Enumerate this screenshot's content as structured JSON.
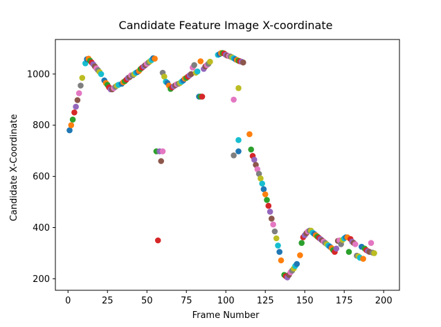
{
  "chart_data": {
    "type": "scatter",
    "title": "Candidate Feature Image X-coordinate",
    "xlabel": "Frame Number",
    "ylabel": "Candidate X-Coordinate",
    "xlim": [
      -8,
      210
    ],
    "ylim": [
      155,
      1135
    ],
    "grid": false,
    "legend": "none",
    "x_ticks": [
      0,
      25,
      50,
      75,
      100,
      125,
      150,
      175,
      200
    ],
    "x_tick_labels": [
      "0",
      "25",
      "50",
      "75",
      "100",
      "125",
      "150",
      "175",
      "200"
    ],
    "y_ticks": [
      200,
      400,
      600,
      800,
      1000
    ],
    "y_tick_labels": [
      "200",
      "400",
      "600",
      "800",
      "1000"
    ],
    "palette": [
      "#1f77b4",
      "#ff7f0e",
      "#2ca02c",
      "#d62728",
      "#9467bd",
      "#8c564b",
      "#e377c2",
      "#7f7f7f",
      "#bcbd22",
      "#17becf"
    ],
    "points": [
      [
        1,
        780
      ],
      [
        2,
        800
      ],
      [
        3,
        822
      ],
      [
        4,
        850
      ],
      [
        5,
        872
      ],
      [
        6,
        898
      ],
      [
        7,
        925
      ],
      [
        8,
        955
      ],
      [
        9,
        985
      ],
      [
        11,
        1042
      ],
      [
        12,
        1058
      ],
      [
        13,
        1060
      ],
      [
        14,
        1052
      ],
      [
        15,
        1045
      ],
      [
        16,
        1038
      ],
      [
        17,
        1030
      ],
      [
        18,
        1022
      ],
      [
        19,
        1015
      ],
      [
        20,
        1008
      ],
      [
        21,
        1000
      ],
      [
        23,
        975
      ],
      [
        24,
        965
      ],
      [
        25,
        958
      ],
      [
        26,
        948
      ],
      [
        27,
        940
      ],
      [
        28,
        940
      ],
      [
        29,
        945
      ],
      [
        30,
        950
      ],
      [
        31,
        955
      ],
      [
        32,
        958
      ],
      [
        34,
        962
      ],
      [
        35,
        968
      ],
      [
        36,
        972
      ],
      [
        37,
        978
      ],
      [
        38,
        985
      ],
      [
        39,
        988
      ],
      [
        40,
        995
      ],
      [
        41,
        995
      ],
      [
        42,
        1000
      ],
      [
        43,
        1005
      ],
      [
        44,
        1008
      ],
      [
        45,
        1012
      ],
      [
        46,
        1020
      ],
      [
        47,
        1025
      ],
      [
        48,
        1030
      ],
      [
        49,
        1035
      ],
      [
        50,
        1040
      ],
      [
        51,
        1045
      ],
      [
        52,
        1050
      ],
      [
        53,
        1055
      ],
      [
        54,
        1062
      ],
      [
        55,
        1060
      ],
      [
        56,
        698
      ],
      [
        57,
        350
      ],
      [
        58,
        698
      ],
      [
        59,
        660
      ],
      [
        60,
        698
      ],
      [
        60,
        1005
      ],
      [
        61,
        990
      ],
      [
        62,
        970
      ],
      [
        63,
        965
      ],
      [
        64,
        955
      ],
      [
        65,
        942
      ],
      [
        66,
        948
      ],
      [
        67,
        952
      ],
      [
        68,
        956
      ],
      [
        69,
        960
      ],
      [
        70,
        962
      ],
      [
        71,
        965
      ],
      [
        72,
        970
      ],
      [
        73,
        975
      ],
      [
        74,
        982
      ],
      [
        75,
        985
      ],
      [
        76,
        990
      ],
      [
        77,
        995
      ],
      [
        78,
        1000
      ],
      [
        79,
        1025
      ],
      [
        80,
        1035
      ],
      [
        81,
        1005
      ],
      [
        82,
        1010
      ],
      [
        83,
        912
      ],
      [
        84,
        1050
      ],
      [
        84,
        912
      ],
      [
        85,
        912
      ],
      [
        86,
        1020
      ],
      [
        87,
        1030
      ],
      [
        88,
        1035
      ],
      [
        89,
        1040
      ],
      [
        90,
        1048
      ],
      [
        95,
        1075
      ],
      [
        96,
        1078
      ],
      [
        97,
        1082
      ],
      [
        98,
        1082
      ],
      [
        99,
        1080
      ],
      [
        100,
        1075
      ],
      [
        101,
        1072
      ],
      [
        102,
        1070
      ],
      [
        103,
        1068
      ],
      [
        104,
        1065
      ],
      [
        105,
        1062
      ],
      [
        106,
        1058
      ],
      [
        107,
        1055
      ],
      [
        108,
        1052
      ],
      [
        109,
        1050
      ],
      [
        110,
        1048
      ],
      [
        111,
        1045
      ],
      [
        105,
        900
      ],
      [
        105,
        682
      ],
      [
        108,
        945
      ],
      [
        108,
        742
      ],
      [
        108,
        698
      ],
      [
        115,
        765
      ],
      [
        116,
        705
      ],
      [
        117,
        680
      ],
      [
        118,
        665
      ],
      [
        119,
        645
      ],
      [
        120,
        628
      ],
      [
        121,
        610
      ],
      [
        122,
        592
      ],
      [
        123,
        572
      ],
      [
        124,
        550
      ],
      [
        125,
        530
      ],
      [
        126,
        508
      ],
      [
        127,
        485
      ],
      [
        128,
        462
      ],
      [
        129,
        435
      ],
      [
        130,
        412
      ],
      [
        131,
        385
      ],
      [
        132,
        358
      ],
      [
        133,
        330
      ],
      [
        134,
        305
      ],
      [
        135,
        272
      ],
      [
        137,
        215
      ],
      [
        138,
        210
      ],
      [
        139,
        205
      ],
      [
        140,
        215
      ],
      [
        141,
        225
      ],
      [
        142,
        232
      ],
      [
        143,
        240
      ],
      [
        144,
        250
      ],
      [
        145,
        258
      ],
      [
        147,
        292
      ],
      [
        148,
        340
      ],
      [
        149,
        362
      ],
      [
        150,
        370
      ],
      [
        151,
        378
      ],
      [
        152,
        385
      ],
      [
        153,
        388
      ],
      [
        154,
        388
      ],
      [
        155,
        380
      ],
      [
        156,
        375
      ],
      [
        157,
        370
      ],
      [
        158,
        365
      ],
      [
        159,
        360
      ],
      [
        160,
        355
      ],
      [
        161,
        350
      ],
      [
        162,
        345
      ],
      [
        163,
        340
      ],
      [
        164,
        335
      ],
      [
        165,
        330
      ],
      [
        166,
        325
      ],
      [
        167,
        320
      ],
      [
        168,
        312
      ],
      [
        169,
        305
      ],
      [
        170,
        318
      ],
      [
        171,
        348
      ],
      [
        172,
        350
      ],
      [
        173,
        335
      ],
      [
        174,
        352
      ],
      [
        175,
        358
      ],
      [
        176,
        362
      ],
      [
        177,
        362
      ],
      [
        178,
        305
      ],
      [
        179,
        355
      ],
      [
        180,
        345
      ],
      [
        181,
        340
      ],
      [
        182,
        335
      ],
      [
        183,
        290
      ],
      [
        184,
        288
      ],
      [
        185,
        282
      ],
      [
        186,
        325
      ],
      [
        187,
        278
      ],
      [
        188,
        318
      ],
      [
        189,
        312
      ],
      [
        190,
        308
      ],
      [
        191,
        305
      ],
      [
        192,
        340
      ],
      [
        193,
        302
      ],
      [
        194,
        300
      ]
    ]
  }
}
